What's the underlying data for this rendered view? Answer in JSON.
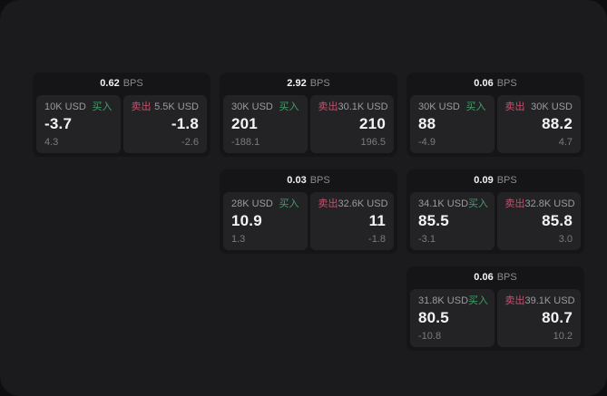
{
  "labels": {
    "buy": "买入",
    "sell": "卖出",
    "bps_unit": "BPS"
  },
  "colors": {
    "buy": "#3ba368",
    "sell": "#c7506b",
    "value_text": "#f4f4f6",
    "muted_text": "#8b8b90",
    "window_bg": "#1b1b1d",
    "card_bg": "#151517",
    "panel_bg": "#232326"
  },
  "cards": [
    {
      "bps": "0.62",
      "buy": {
        "amount": "10K USD",
        "value": "-3.7",
        "delta": "4.3"
      },
      "sell": {
        "amount": "5.5K USD",
        "value": "-1.8",
        "delta": "-2.6"
      }
    },
    {
      "bps": "2.92",
      "buy": {
        "amount": "30K USD",
        "value": "201",
        "delta": "-188.1"
      },
      "sell": {
        "amount": "30.1K USD",
        "value": "210",
        "delta": "196.5"
      }
    },
    {
      "bps": "0.06",
      "buy": {
        "amount": "30K USD",
        "value": "88",
        "delta": "-4.9"
      },
      "sell": {
        "amount": "30K USD",
        "value": "88.2",
        "delta": "4.7"
      }
    },
    {
      "bps": "0.03",
      "buy": {
        "amount": "28K USD",
        "value": "10.9",
        "delta": "1.3"
      },
      "sell": {
        "amount": "32.6K USD",
        "value": "11",
        "delta": "-1.8"
      }
    },
    {
      "bps": "0.09",
      "buy": {
        "amount": "34.1K USD",
        "value": "85.5",
        "delta": "-3.1"
      },
      "sell": {
        "amount": "32.8K USD",
        "value": "85.8",
        "delta": "3.0"
      }
    },
    {
      "bps": "0.06",
      "buy": {
        "amount": "31.8K USD",
        "value": "80.5",
        "delta": "-10.8"
      },
      "sell": {
        "amount": "39.1K USD",
        "value": "80.7",
        "delta": "10.2"
      }
    }
  ]
}
